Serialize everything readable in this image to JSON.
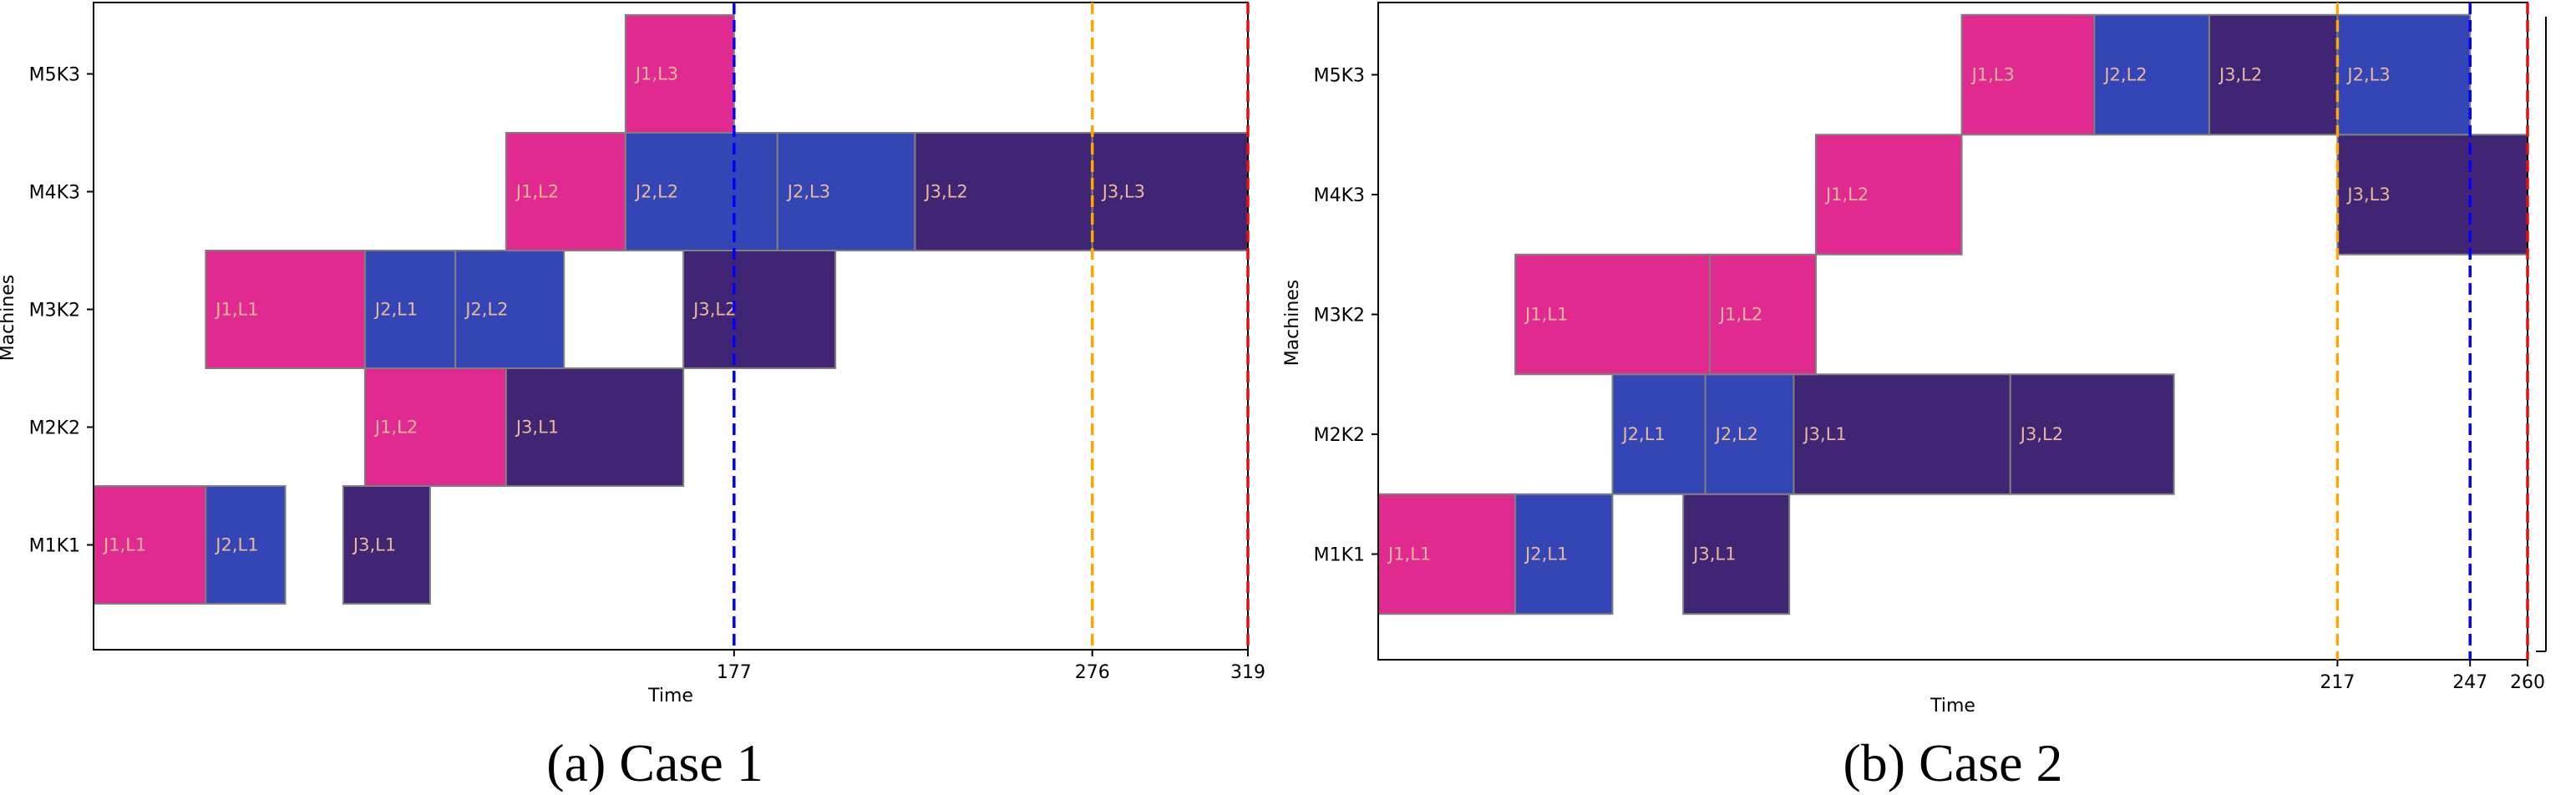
{
  "colors": {
    "J1": "#e12a8f",
    "J2": "#3446b5",
    "J3": "#3f2573",
    "bar_edge": "#7f7f7f",
    "bar_label": "#e8b898",
    "vline_blue": "#0000ff",
    "vline_orange": "#ffa500",
    "vline_red": "#e01010"
  },
  "chart_data": [
    {
      "type": "gantt",
      "caption": "(a) Case 1",
      "xlabel": "Time",
      "ylabel": "Machines",
      "machines": [
        "M1K1",
        "M2K2",
        "M3K2",
        "M4K3",
        "M5K3"
      ],
      "xlim": [
        0,
        319
      ],
      "xticks": [
        177,
        276,
        319
      ],
      "grid": false,
      "tasks": [
        {
          "machine": "M1K1",
          "job": "J1",
          "label": "J1,L1",
          "start": 0,
          "end": 31
        },
        {
          "machine": "M1K1",
          "job": "J2",
          "label": "J2,L1",
          "start": 31,
          "end": 53
        },
        {
          "machine": "M1K1",
          "job": "J3",
          "label": "J3,L1",
          "start": 69,
          "end": 93
        },
        {
          "machine": "M2K2",
          "job": "J1",
          "label": "J1,L2",
          "start": 75,
          "end": 114
        },
        {
          "machine": "M2K2",
          "job": "J3",
          "label": "J3,L1",
          "start": 114,
          "end": 163
        },
        {
          "machine": "M3K2",
          "job": "J1",
          "label": "J1,L1",
          "start": 31,
          "end": 75
        },
        {
          "machine": "M3K2",
          "job": "J2",
          "label": "J2,L1",
          "start": 75,
          "end": 100
        },
        {
          "machine": "M3K2",
          "job": "J2",
          "label": "J2,L2",
          "start": 100,
          "end": 130
        },
        {
          "machine": "M3K2",
          "job": "J3",
          "label": "J3,L2",
          "start": 163,
          "end": 205
        },
        {
          "machine": "M4K3",
          "job": "J1",
          "label": "J1,L2",
          "start": 114,
          "end": 147
        },
        {
          "machine": "M4K3",
          "job": "J2",
          "label": "J2,L2",
          "start": 147,
          "end": 189
        },
        {
          "machine": "M4K3",
          "job": "J2",
          "label": "J2,L3",
          "start": 189,
          "end": 227
        },
        {
          "machine": "M4K3",
          "job": "J3",
          "label": "J3,L2",
          "start": 227,
          "end": 276
        },
        {
          "machine": "M4K3",
          "job": "J3",
          "label": "J3,L3",
          "start": 276,
          "end": 319
        },
        {
          "machine": "M5K3",
          "job": "J1",
          "label": "J1,L3",
          "start": 147,
          "end": 177
        }
      ],
      "vlines": [
        {
          "x": 177,
          "color": "vline_blue"
        },
        {
          "x": 276,
          "color": "vline_orange"
        },
        {
          "x": 319,
          "color": "vline_red"
        }
      ]
    },
    {
      "type": "gantt",
      "caption": "(b) Case 2",
      "xlabel": "Time",
      "ylabel": "Machines",
      "machines": [
        "M1K1",
        "M2K2",
        "M3K2",
        "M4K3",
        "M5K3"
      ],
      "xlim": [
        0,
        260
      ],
      "xticks": [
        217,
        247,
        260
      ],
      "grid": false,
      "tasks": [
        {
          "machine": "M1K1",
          "job": "J1",
          "label": "J1,L1",
          "start": 0,
          "end": 31
        },
        {
          "machine": "M1K1",
          "job": "J2",
          "label": "J2,L1",
          "start": 31,
          "end": 53
        },
        {
          "machine": "M1K1",
          "job": "J3",
          "label": "J3,L1",
          "start": 69,
          "end": 93
        },
        {
          "machine": "M2K2",
          "job": "J2",
          "label": "J2,L1",
          "start": 53,
          "end": 74
        },
        {
          "machine": "M2K2",
          "job": "J2",
          "label": "J2,L2",
          "start": 74,
          "end": 94
        },
        {
          "machine": "M2K2",
          "job": "J3",
          "label": "J3,L1",
          "start": 94,
          "end": 143
        },
        {
          "machine": "M2K2",
          "job": "J3",
          "label": "J3,L2",
          "start": 143,
          "end": 180
        },
        {
          "machine": "M3K2",
          "job": "J1",
          "label": "J1,L1",
          "start": 31,
          "end": 75
        },
        {
          "machine": "M3K2",
          "job": "J1",
          "label": "J1,L2",
          "start": 75,
          "end": 99
        },
        {
          "machine": "M4K3",
          "job": "J1",
          "label": "J1,L2",
          "start": 99,
          "end": 132
        },
        {
          "machine": "M4K3",
          "job": "J3",
          "label": "J3,L3",
          "start": 217,
          "end": 260
        },
        {
          "machine": "M5K3",
          "job": "J1",
          "label": "J1,L3",
          "start": 132,
          "end": 162
        },
        {
          "machine": "M5K3",
          "job": "J2",
          "label": "J2,L2",
          "start": 162,
          "end": 188
        },
        {
          "machine": "M5K3",
          "job": "J3",
          "label": "J3,L2",
          "start": 188,
          "end": 217
        },
        {
          "machine": "M5K3",
          "job": "J2",
          "label": "J2,L3",
          "start": 217,
          "end": 247
        }
      ],
      "vlines": [
        {
          "x": 217,
          "color": "vline_orange"
        },
        {
          "x": 247,
          "color": "vline_blue"
        },
        {
          "x": 260,
          "color": "vline_red"
        }
      ]
    }
  ]
}
